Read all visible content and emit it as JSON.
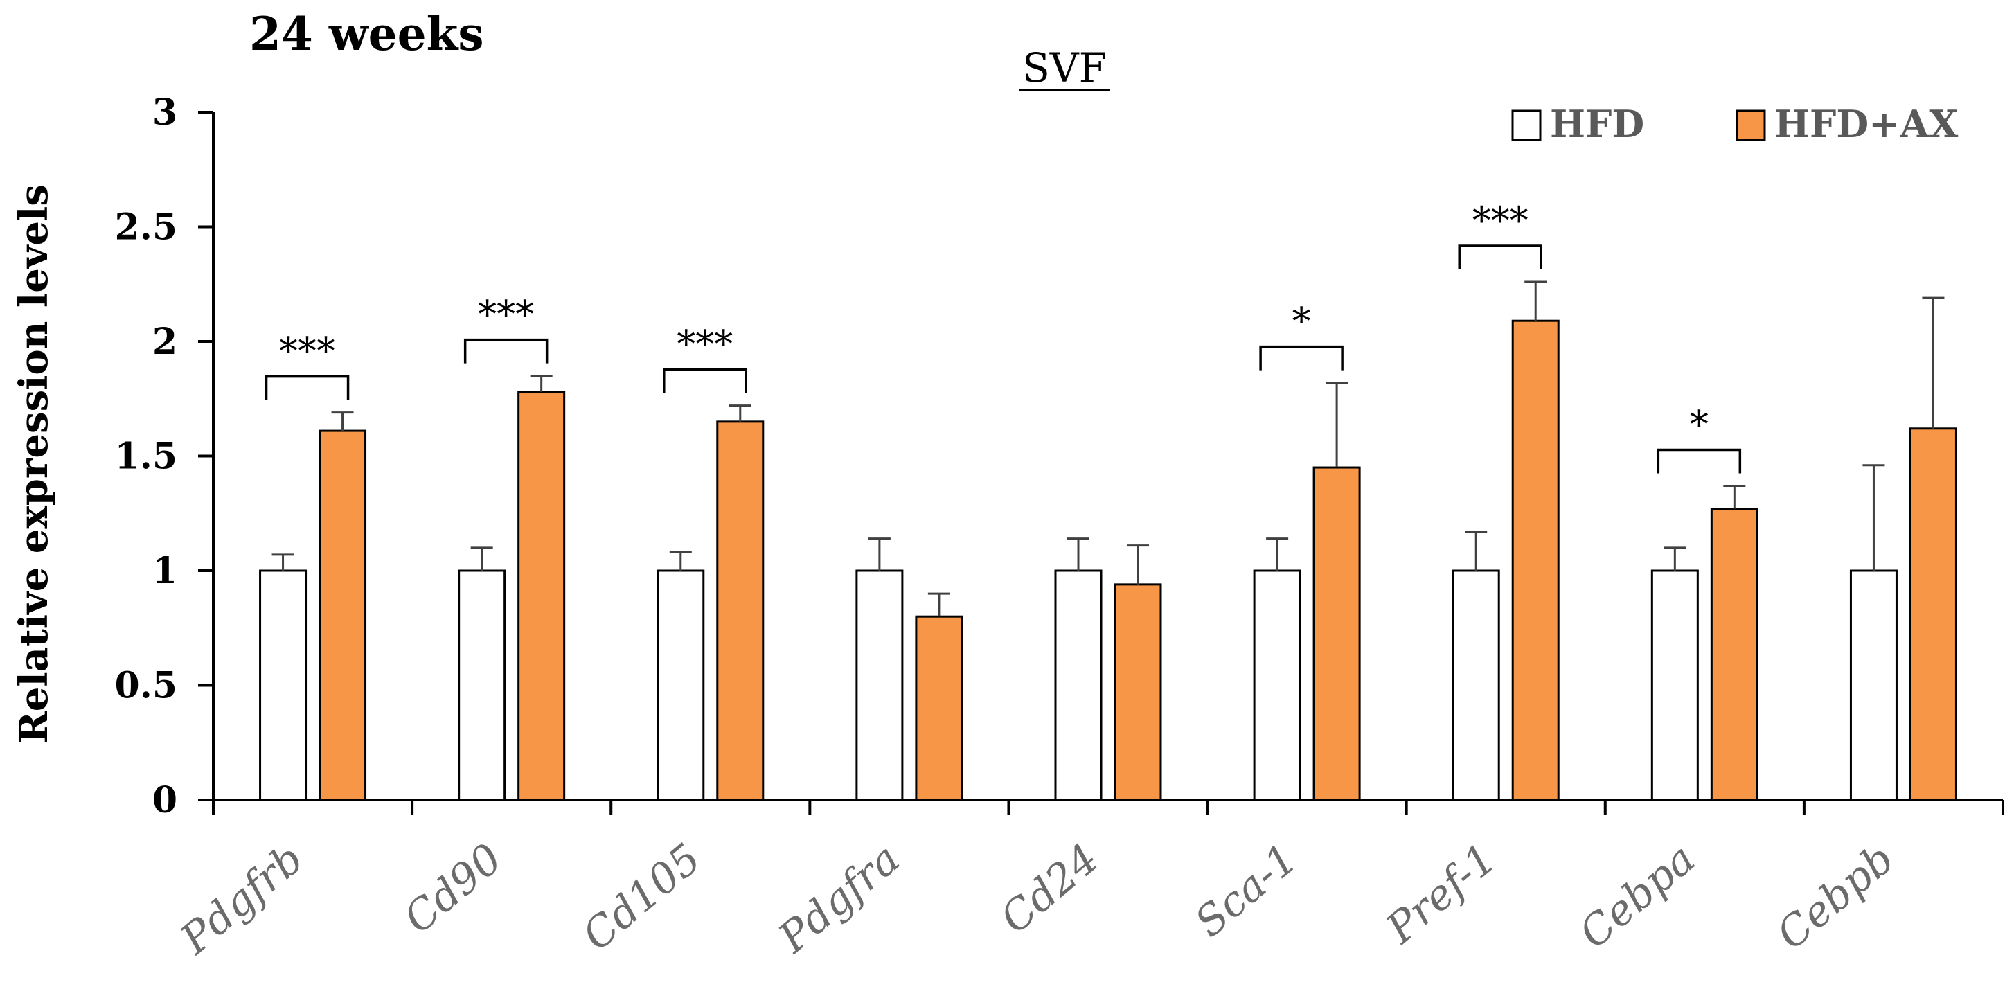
{
  "panel_label": "24 weeks",
  "chart_data": {
    "type": "bar",
    "title": "SVF",
    "xlabel": "",
    "ylabel": "Relative expression levels",
    "ylim": [
      0,
      3
    ],
    "yticks": [
      0,
      0.5,
      1,
      1.5,
      2,
      2.5,
      3
    ],
    "ytick_labels": [
      "0",
      "0.5",
      "1",
      "1.5",
      "2",
      "2.5",
      "3"
    ],
    "categories": [
      "Pdgfrb",
      "Cd90",
      "Cd105",
      "Pdgfra",
      "Cd24",
      "Sca-1",
      "Pref-1",
      "Cebpa",
      "Cebpb"
    ],
    "series": [
      {
        "name": "HFD",
        "color": "#ffffff",
        "values": [
          1,
          1,
          1,
          1,
          1,
          1,
          1,
          1,
          1
        ],
        "errors": [
          0.07,
          0.1,
          0.08,
          0.14,
          0.14,
          0.14,
          0.17,
          0.1,
          0.46
        ]
      },
      {
        "name": "HFD+AX",
        "color": "#f79646",
        "values": [
          1.61,
          1.78,
          1.65,
          0.8,
          0.94,
          1.45,
          2.09,
          1.27,
          1.62
        ],
        "errors": [
          0.08,
          0.07,
          0.07,
          0.1,
          0.17,
          0.37,
          0.17,
          0.1,
          0.57
        ]
      }
    ],
    "significance": [
      "***",
      "***",
      "***",
      "",
      "",
      "*",
      "***",
      "*",
      ""
    ],
    "legend_position": "top-right",
    "grid": false
  }
}
